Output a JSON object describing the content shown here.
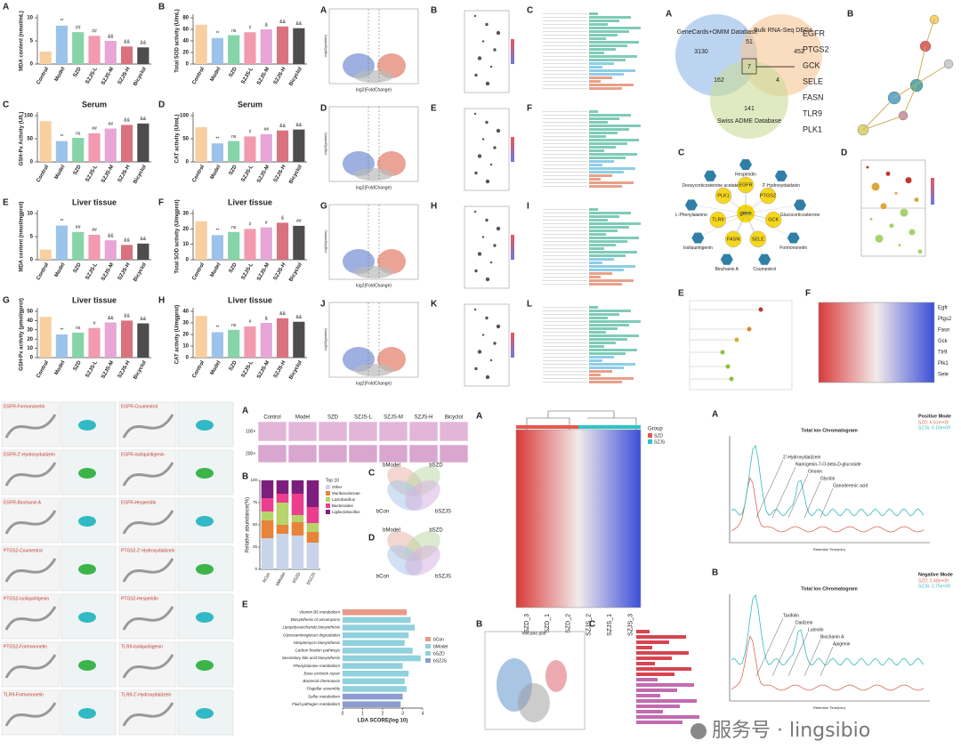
{
  "chart_data": [
    {
      "type": "bar",
      "panel": "A",
      "y_label": "MDA content (nmol/mL)",
      "categories": [
        "Control",
        "Model",
        "SZD",
        "SZJS-L",
        "SZJS-M",
        "SZJS-H",
        "Bicyclol"
      ],
      "values": [
        2.7,
        8.3,
        6.9,
        6.1,
        5.0,
        3.8,
        3.6
      ],
      "colors": [
        "#f8cfa0",
        "#9cc3ea",
        "#86d4a8",
        "#f29ab0",
        "#e7a6d6",
        "#d9727e",
        "#4d4d4d"
      ],
      "ylim": [
        0,
        10
      ],
      "yticks": [
        0,
        5,
        10
      ],
      "sig_labels": [
        null,
        "**",
        "##",
        "##",
        "&&",
        "&&",
        "&&"
      ]
    },
    {
      "type": "bar",
      "panel": "B",
      "y_label": "Total SOD activity (U/mL)",
      "categories": [
        "Control",
        "Model",
        "SZD",
        "SZJS-L",
        "SZJS-M",
        "SZJS-H",
        "Bicyclol"
      ],
      "values": [
        68,
        45,
        50,
        55,
        60,
        65,
        62
      ],
      "colors": [
        "#f8cfa0",
        "#9cc3ea",
        "#86d4a8",
        "#f29ab0",
        "#e7a6d6",
        "#d9727e",
        "#4d4d4d"
      ],
      "ylim": [
        0,
        80
      ],
      "yticks": [
        0,
        20,
        40,
        60,
        80
      ],
      "sig_labels": [
        null,
        "**",
        "ns",
        "#",
        "&",
        "&&",
        "&&"
      ]
    },
    {
      "type": "bar",
      "panel": "C",
      "title": "Serum",
      "y_label": "GSH-Px Activity (U/L)",
      "categories": [
        "Control",
        "Model",
        "SZD",
        "SZJS-L",
        "SZJS-M",
        "SZJS-H",
        "Bicyclol"
      ],
      "values": [
        88,
        45,
        52,
        62,
        72,
        80,
        83
      ],
      "colors": [
        "#f8cfa0",
        "#9cc3ea",
        "#86d4a8",
        "#f29ab0",
        "#e7a6d6",
        "#d9727e",
        "#4d4d4d"
      ],
      "ylim": [
        0,
        100
      ],
      "yticks": [
        0,
        50,
        100
      ],
      "sig_labels": [
        null,
        "**",
        "ns",
        "##",
        "##",
        "&&",
        "&&"
      ]
    },
    {
      "type": "bar",
      "panel": "D",
      "title": "Serum",
      "y_label": "CAT activity (U/mL)",
      "categories": [
        "Control",
        "Model",
        "SZD",
        "SZJS-L",
        "SZJS-M",
        "SZJS-H",
        "Bicyclol"
      ],
      "values": [
        75,
        40,
        45,
        55,
        60,
        68,
        70
      ],
      "colors": [
        "#f8cfa0",
        "#9cc3ea",
        "#86d4a8",
        "#f29ab0",
        "#e7a6d6",
        "#d9727e",
        "#4d4d4d"
      ],
      "ylim": [
        0,
        100
      ],
      "yticks": [
        0,
        50,
        100
      ],
      "sig_labels": [
        null,
        "**",
        "ns",
        "#",
        "##",
        "&&",
        "&&"
      ]
    },
    {
      "type": "bar",
      "panel": "E",
      "title": "Liver tissue",
      "y_label": "MDA content (nmol/mgprot)",
      "categories": [
        "Control",
        "Model",
        "SZD",
        "SZJS-L",
        "SZJS-M",
        "SZJS-H",
        "Bicyclol"
      ],
      "values": [
        2.2,
        7.4,
        6.0,
        5.4,
        4.2,
        3.2,
        3.5
      ],
      "colors": [
        "#f8cfa0",
        "#9cc3ea",
        "#86d4a8",
        "#f29ab0",
        "#e7a6d6",
        "#d9727e",
        "#4d4d4d"
      ],
      "ylim": [
        0,
        10
      ],
      "yticks": [
        0,
        5,
        10
      ],
      "sig_labels": [
        null,
        "**",
        "##",
        "##",
        "&&",
        "&&",
        "&&"
      ]
    },
    {
      "type": "bar",
      "panel": "F",
      "title": "Liver tissue",
      "y_label": "Total SOD activity (U/mgprot)",
      "categories": [
        "Control",
        "Model",
        "SZD",
        "SZJS-L",
        "SZJS-M",
        "SZJS-H",
        "Bicyclol"
      ],
      "values": [
        25,
        16,
        18,
        20,
        21,
        24,
        22
      ],
      "colors": [
        "#f8cfa0",
        "#9cc3ea",
        "#86d4a8",
        "#f29ab0",
        "#e7a6d6",
        "#d9727e",
        "#4d4d4d"
      ],
      "ylim": [
        0,
        30
      ],
      "yticks": [
        0,
        10,
        20,
        30
      ],
      "sig_labels": [
        null,
        "**",
        "ns",
        "#",
        "#",
        "&",
        "##"
      ]
    },
    {
      "type": "bar",
      "panel": "G",
      "title": "Liver tissue",
      "y_label": "GSH-Px activity (μmol/gprot)",
      "categories": [
        "Control",
        "Model",
        "SZD",
        "SZJS-L",
        "SZJS-M",
        "SZJS-H",
        "Bicyclol"
      ],
      "values": [
        44,
        25,
        27,
        32,
        38,
        40,
        37
      ],
      "colors": [
        "#f8cfa0",
        "#9cc3ea",
        "#86d4a8",
        "#f29ab0",
        "#e7a6d6",
        "#d9727e",
        "#4d4d4d"
      ],
      "ylim": [
        0,
        50
      ],
      "yticks": [
        0,
        10,
        20,
        30,
        40,
        50
      ],
      "sig_labels": [
        null,
        "**",
        "ns",
        "#",
        "&&",
        "&&",
        "&&"
      ]
    },
    {
      "type": "bar",
      "panel": "H",
      "title": "Liver tissue",
      "y_label": "CAT activity (U/mgprot)",
      "categories": [
        "Control",
        "Model",
        "SZD",
        "SZJS-L",
        "SZJS-M",
        "SZJS-H",
        "Bicyclol"
      ],
      "values": [
        36,
        22,
        24,
        27,
        30,
        34,
        31
      ],
      "colors": [
        "#f8cfa0",
        "#9cc3ea",
        "#86d4a8",
        "#f29ab0",
        "#e7a6d6",
        "#d9727e",
        "#4d4d4d"
      ],
      "ylim": [
        0,
        40
      ],
      "yticks": [
        0,
        10,
        20,
        30,
        40
      ],
      "sig_labels": [
        null,
        "**",
        "ns",
        "#",
        "&",
        "&&",
        "&&"
      ]
    },
    {
      "type": "stacked",
      "panel": "B",
      "y_label": "Relative abundance(%)",
      "legend_title": "Top 10",
      "categories": [
        "bCon",
        "bModel",
        "bSZD",
        "bSZJS"
      ],
      "series": [
        {
          "name": "Other",
          "color": "#c9d4e8",
          "values": [
            35,
            40,
            38,
            30
          ]
        },
        {
          "name": "Muribaculaceae",
          "color": "#e8833a",
          "values": [
            20,
            10,
            15,
            12
          ]
        },
        {
          "name": "Lactobacillus",
          "color": "#b7d36b",
          "values": [
            10,
            25,
            8,
            10
          ]
        },
        {
          "name": "Bacteroides",
          "color": "#ec3d8e",
          "values": [
            15,
            10,
            24,
            18
          ]
        },
        {
          "name": "Ligilactobacillus",
          "color": "#7c1f7c",
          "values": [
            20,
            15,
            15,
            30
          ]
        }
      ],
      "ylim": [
        0,
        100
      ],
      "yticks": [
        0,
        25,
        50,
        75,
        100
      ]
    },
    {
      "type": "hbar",
      "panel": "E",
      "x_label": "LDA SCORE(log 10)",
      "categories": [
        "Vitamin B6 metabolism",
        "Biosynthesis of ansamycins",
        "Lipopolysaccharide biosynthesis",
        "Glycosaminoglycan degradation",
        "Streptomycin biosynthesis",
        "Carbon fixation pathways",
        "Secondary bile acid biosynthesis",
        "Phenylalanine metabolism",
        "Base excision repair",
        "Bacterial chemotaxis",
        "Flagellar assembly",
        "Sulfur metabolism",
        "Fluid pathogen metabolism"
      ],
      "values": [
        3.2,
        3.4,
        3.6,
        3.3,
        3.1,
        3.5,
        3.9,
        3.0,
        3.3,
        3.1,
        3.2,
        3.0,
        2.9
      ],
      "colors": [
        "#e89a85",
        "#8fd1dc",
        "#8fd1dc",
        "#8fd1dc",
        "#8fd1dc",
        "#8fd1dc",
        "#8fd1dc",
        "#8fd1dc",
        "#8fd1dc",
        "#8fd1dc",
        "#8fd1dc",
        "#8c9cd0",
        "#8c9cd0"
      ],
      "xlim": [
        0,
        4
      ],
      "xticks": [
        0,
        1,
        2,
        3,
        4
      ],
      "legend": [
        {
          "name": "bCon",
          "color": "#e89a85"
        },
        {
          "name": "bModel",
          "color": "#8fd1dc"
        },
        {
          "name": "bSZD",
          "color": "#8fd1dc"
        },
        {
          "name": "bSZJS",
          "color": "#8c9cd0"
        }
      ]
    }
  ],
  "volcano_grid": {
    "panels": [
      "A",
      "B",
      "C",
      "D",
      "E",
      "F",
      "G",
      "H",
      "I",
      "J",
      "K",
      "L"
    ],
    "x_label": "log2(FoldChange)",
    "y_label": "-log10(pvalue)"
  },
  "network": {
    "panels": [
      "A",
      "B",
      "C",
      "D",
      "E",
      "F"
    ],
    "venn_labels": [
      "GeneCards+OMIM Database",
      "Bulk RNA-Seq DEGs",
      "Swiss ADME Database"
    ],
    "venn_counts": [
      "3130",
      "51",
      "452",
      "7",
      "162",
      "4",
      "141"
    ],
    "genes": [
      "EGFR",
      "PTGS2",
      "GCK",
      "SELE",
      "FASN",
      "TLR9",
      "PLK1"
    ],
    "hub": "gene",
    "compounds": [
      "Hesperidin",
      "2'-Hydroxydaidzein",
      "Glucocorticosterone",
      "Formononetin",
      "Coumestrol",
      "Biochanin A",
      "Isoliquiritigenin",
      "L-Phenylalanine",
      "Deoxycorticosterone acetate"
    ],
    "heatmap_genes": [
      "Egfr",
      "Ptgs2",
      "Fasn",
      "Gck",
      "Tlr9",
      "Plk1",
      "Sele"
    ]
  },
  "docking": {
    "labels": [
      "EGFR-Formononetin",
      "EGFR-Coumestrol",
      "EGFR-2'-Hydroxydaidzein",
      "EGFR-Isoliquiritigenin",
      "EGFR-Biochanin A",
      "EGFR-Hesperidin",
      "PTGS2-Coumestrol",
      "PTGS2-2'-Hydroxydaidzein",
      "PTGS2-Isoliquiritigenin",
      "PTGS2-Hesperidin",
      "PTGS2-Formononetin",
      "TLR9-Isoliquiritigenin",
      "TLR9-Formononetin",
      "TLR9-2'-Hydroxydaidzein"
    ]
  },
  "microbiome": {
    "panels": [
      "A",
      "C",
      "D"
    ],
    "groups": [
      "Control",
      "Model",
      "SZD",
      "SZJS-L",
      "SZJS-M",
      "SZJS-H",
      "Bicyclol"
    ],
    "magnifications": [
      "100×",
      "200×"
    ],
    "venn_sets": [
      "bModel",
      "bSZD",
      "bCon",
      "bSZJS"
    ]
  },
  "transcriptome": {
    "panels": [
      "A",
      "B",
      "C"
    ],
    "group_title": "Group",
    "groups": [
      "SZD",
      "SZJS"
    ],
    "samples": [
      "SZD_3",
      "SZD_1",
      "SZD_2",
      "SZJS_2",
      "SZJS_1",
      "SZJS_3"
    ],
    "volcano_title": "Volcano plot"
  },
  "chromatogram": {
    "panels": [
      "A",
      "B"
    ],
    "title": "Total Ion Chromatogram",
    "modes": [
      "Positive Mode",
      "Negative Mode"
    ],
    "legend_pos": [
      "SZD: 6.61e+09",
      "SZJS: 6.15e+09"
    ],
    "legend_neg": [
      "SZD: 2.40e+09",
      "SZJS: 1.75e+09"
    ],
    "pos_peaks": [
      "2'-Hydroxydaidzein",
      "Naringenin-7-O-beta-D-glucoside",
      "Ononin",
      "Glycitin",
      "Ganoderenic acid"
    ],
    "neg_peaks": [
      "Taxifolin",
      "Daidzein",
      "Luteolin",
      "Biochanin A",
      "Apigenin"
    ],
    "x_label": "Retention Time(min)"
  },
  "watermark": "服务号 · lingsibio"
}
